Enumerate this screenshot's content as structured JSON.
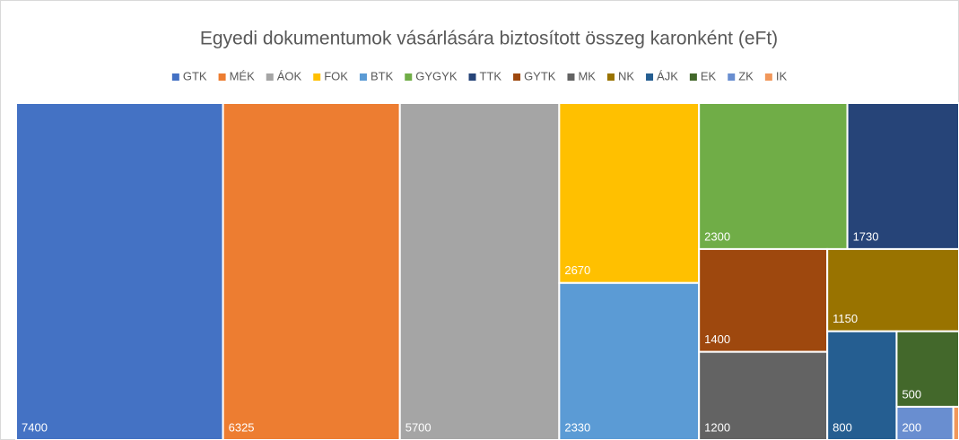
{
  "chart_data": {
    "type": "treemap",
    "title": "Egyedi dokumentumok vásárlására biztosított összeg karonként (eFt)",
    "categories": [
      "GTK",
      "MÉK",
      "ÁOK",
      "FOK",
      "BTK",
      "GYGYK",
      "TTK",
      "GYTK",
      "MK",
      "NK",
      "ÁJK",
      "EK",
      "ZK",
      "IK"
    ],
    "values": [
      7400,
      6325,
      5700,
      2670,
      2330,
      2300,
      1730,
      1400,
      1200,
      1150,
      800,
      500,
      200,
      20
    ],
    "colors": [
      "#4472c4",
      "#ed7d31",
      "#a5a5a5",
      "#ffc000",
      "#5b9bd5",
      "#70ad47",
      "#264478",
      "#9e480e",
      "#636363",
      "#997300",
      "#255e91",
      "#43682b",
      "#698ed0",
      "#f1975a"
    ],
    "legend": "top"
  }
}
